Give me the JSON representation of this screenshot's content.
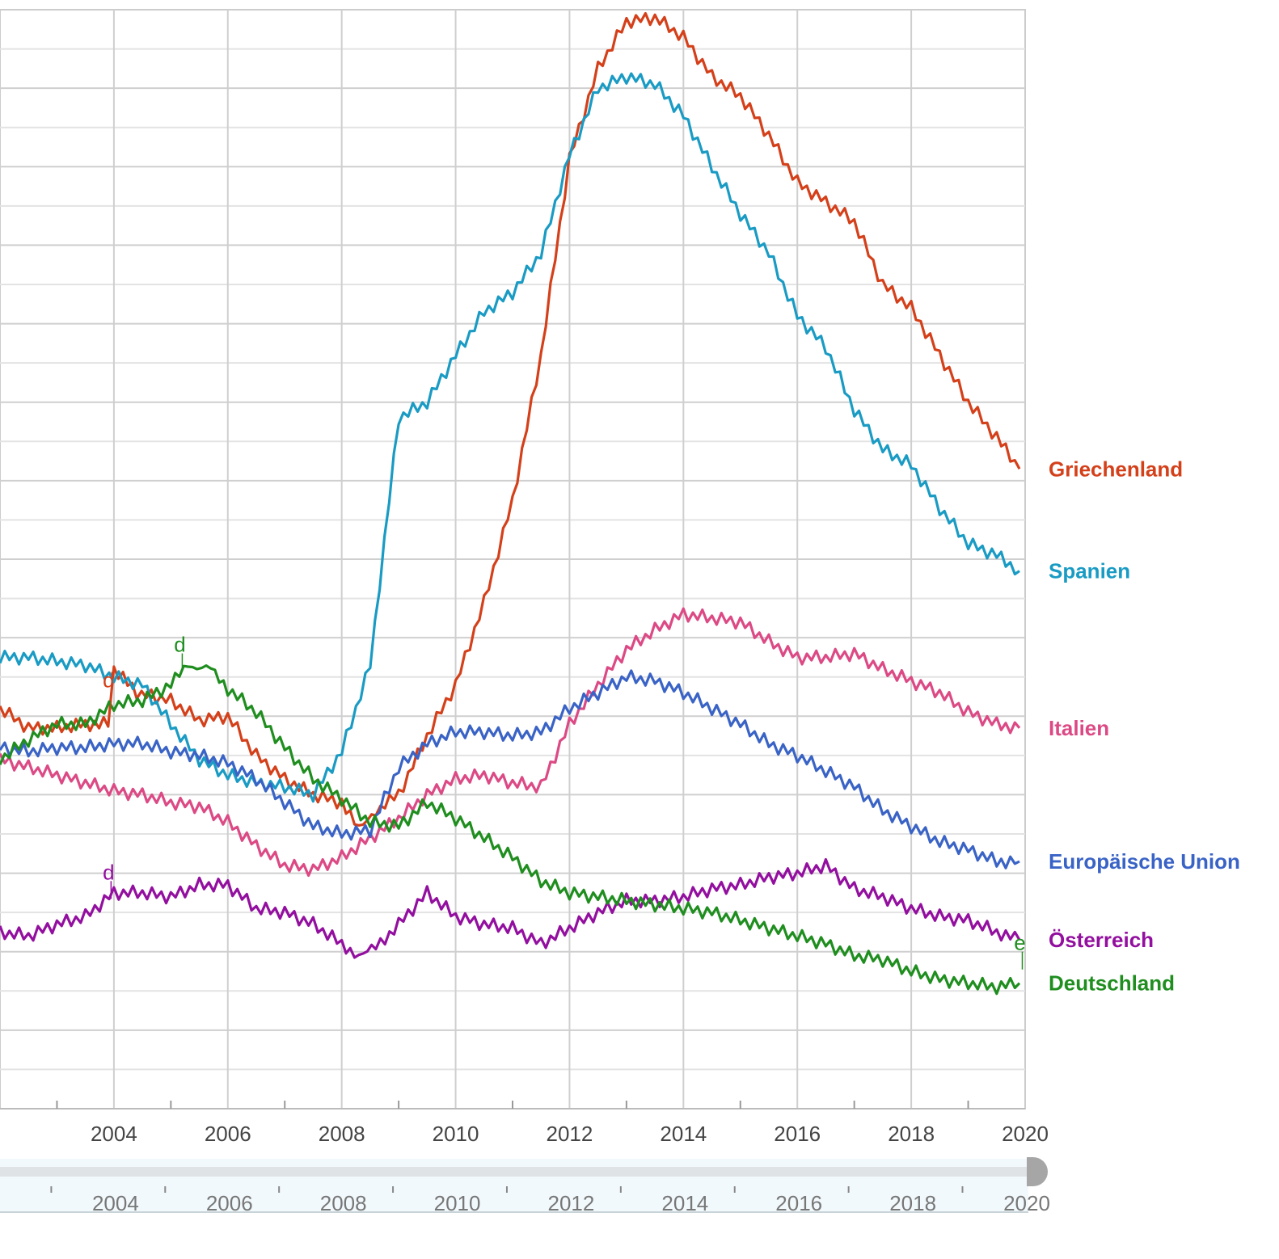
{
  "chart_data": {
    "type": "line",
    "title": "",
    "xlabel": "",
    "ylabel": "",
    "xlim": [
      2002,
      2020
    ],
    "ylim": [
      0,
      28
    ],
    "grid": true,
    "x_ticks": [
      "2004",
      "2006",
      "2008",
      "2010",
      "2012",
      "2014",
      "2016",
      "2018",
      "2020"
    ],
    "navigator_ticks": [
      "2004",
      "2006",
      "2008",
      "2010",
      "2012",
      "2014",
      "2016",
      "2018",
      "2020"
    ],
    "series": [
      {
        "name": "Griechenland",
        "color": "#d4401a",
        "points": [
          [
            2002,
            10.2
          ],
          [
            2002.5,
            9.7
          ],
          [
            2003,
            9.7
          ],
          [
            2003.5,
            9.8
          ],
          [
            2003.9,
            9.8
          ],
          [
            2004,
            11.2
          ],
          [
            2004.4,
            10.6
          ],
          [
            2005,
            10.4
          ],
          [
            2005.5,
            9.9
          ],
          [
            2006,
            10.0
          ],
          [
            2006.5,
            9.0
          ],
          [
            2007,
            8.4
          ],
          [
            2007.5,
            8.0
          ],
          [
            2008,
            7.8
          ],
          [
            2008.3,
            7.1
          ],
          [
            2008.6,
            7.6
          ],
          [
            2009,
            8.0
          ],
          [
            2009.5,
            9.5
          ],
          [
            2010,
            10.8
          ],
          [
            2010.5,
            12.9
          ],
          [
            2011,
            15.5
          ],
          [
            2011.5,
            19.2
          ],
          [
            2012,
            24.2
          ],
          [
            2012.5,
            26.5
          ],
          [
            2013,
            27.7
          ],
          [
            2013.5,
            27.8
          ],
          [
            2014,
            27.3
          ],
          [
            2014.5,
            26.3
          ],
          [
            2015,
            25.8
          ],
          [
            2015.5,
            24.8
          ],
          [
            2016,
            23.6
          ],
          [
            2016.5,
            23.1
          ],
          [
            2017,
            22.6
          ],
          [
            2017.5,
            21.0
          ],
          [
            2018,
            20.4
          ],
          [
            2018.5,
            19.2
          ],
          [
            2019,
            18.0
          ],
          [
            2019.5,
            17.1
          ],
          [
            2019.9,
            16.3
          ]
        ]
      },
      {
        "name": "Spanien",
        "color": "#1a9bc4",
        "points": [
          [
            2002,
            11.5
          ],
          [
            2002.5,
            11.5
          ],
          [
            2003,
            11.4
          ],
          [
            2003.5,
            11.3
          ],
          [
            2004,
            11.0
          ],
          [
            2004.5,
            10.8
          ],
          [
            2005,
            9.8
          ],
          [
            2005.5,
            8.9
          ],
          [
            2006,
            8.5
          ],
          [
            2006.5,
            8.3
          ],
          [
            2007,
            8.2
          ],
          [
            2007.5,
            8.0
          ],
          [
            2008,
            9.1
          ],
          [
            2008.5,
            11.3
          ],
          [
            2009,
            17.6
          ],
          [
            2009.5,
            18.0
          ],
          [
            2010,
            19.2
          ],
          [
            2010.5,
            20.3
          ],
          [
            2011,
            20.8
          ],
          [
            2011.5,
            21.8
          ],
          [
            2012,
            24.3
          ],
          [
            2012.5,
            26.0
          ],
          [
            2013,
            26.3
          ],
          [
            2013.5,
            26.1
          ],
          [
            2014,
            25.3
          ],
          [
            2014.5,
            24.0
          ],
          [
            2015,
            22.8
          ],
          [
            2015.5,
            21.8
          ],
          [
            2016,
            20.2
          ],
          [
            2016.5,
            19.4
          ],
          [
            2017,
            17.8
          ],
          [
            2017.5,
            16.8
          ],
          [
            2018,
            16.4
          ],
          [
            2018.5,
            15.3
          ],
          [
            2019,
            14.4
          ],
          [
            2019.5,
            14.1
          ],
          [
            2019.9,
            13.7
          ]
        ]
      },
      {
        "name": "Italien",
        "color": "#dc4a85",
        "points": [
          [
            2002,
            8.9
          ],
          [
            2002.5,
            8.7
          ],
          [
            2003,
            8.5
          ],
          [
            2003.5,
            8.3
          ],
          [
            2004,
            8.1
          ],
          [
            2004.5,
            8.0
          ],
          [
            2005,
            7.8
          ],
          [
            2005.5,
            7.7
          ],
          [
            2006,
            7.3
          ],
          [
            2006.5,
            6.7
          ],
          [
            2007,
            6.2
          ],
          [
            2007.5,
            6.1
          ],
          [
            2008,
            6.4
          ],
          [
            2008.5,
            6.9
          ],
          [
            2009,
            7.4
          ],
          [
            2009.5,
            8.0
          ],
          [
            2010,
            8.4
          ],
          [
            2010.5,
            8.5
          ],
          [
            2011,
            8.3
          ],
          [
            2011.5,
            8.2
          ],
          [
            2012,
            9.8
          ],
          [
            2012.5,
            10.8
          ],
          [
            2013,
            11.7
          ],
          [
            2013.5,
            12.2
          ],
          [
            2014,
            12.6
          ],
          [
            2014.5,
            12.5
          ],
          [
            2015,
            12.4
          ],
          [
            2015.5,
            11.9
          ],
          [
            2016,
            11.5
          ],
          [
            2016.5,
            11.5
          ],
          [
            2017,
            11.6
          ],
          [
            2017.5,
            11.2
          ],
          [
            2018,
            10.9
          ],
          [
            2018.5,
            10.6
          ],
          [
            2019,
            10.1
          ],
          [
            2019.5,
            9.8
          ],
          [
            2019.9,
            9.7
          ]
        ]
      },
      {
        "name": "Europäische Union",
        "color": "#3a63c6",
        "points": [
          [
            2002,
            9.2
          ],
          [
            2002.5,
            9.1
          ],
          [
            2003,
            9.2
          ],
          [
            2003.5,
            9.2
          ],
          [
            2004,
            9.3
          ],
          [
            2004.5,
            9.3
          ],
          [
            2005,
            9.1
          ],
          [
            2005.5,
            9.0
          ],
          [
            2006,
            8.8
          ],
          [
            2006.5,
            8.4
          ],
          [
            2007,
            7.8
          ],
          [
            2007.5,
            7.2
          ],
          [
            2008,
            7.0
          ],
          [
            2008.5,
            7.1
          ],
          [
            2009,
            8.7
          ],
          [
            2009.5,
            9.3
          ],
          [
            2010,
            9.6
          ],
          [
            2010.5,
            9.6
          ],
          [
            2011,
            9.5
          ],
          [
            2011.5,
            9.6
          ],
          [
            2012,
            10.2
          ],
          [
            2012.5,
            10.6
          ],
          [
            2013,
            11.0
          ],
          [
            2013.5,
            10.9
          ],
          [
            2014,
            10.6
          ],
          [
            2014.5,
            10.2
          ],
          [
            2015,
            9.8
          ],
          [
            2015.5,
            9.3
          ],
          [
            2016,
            9.0
          ],
          [
            2016.5,
            8.6
          ],
          [
            2017,
            8.2
          ],
          [
            2017.5,
            7.6
          ],
          [
            2018,
            7.2
          ],
          [
            2018.5,
            6.8
          ],
          [
            2019,
            6.6
          ],
          [
            2019.5,
            6.3
          ],
          [
            2019.9,
            6.3
          ]
        ]
      },
      {
        "name": "Österreich",
        "color": "#930f9f",
        "points": [
          [
            2002,
            4.5
          ],
          [
            2002.5,
            4.4
          ],
          [
            2003,
            4.7
          ],
          [
            2003.5,
            4.9
          ],
          [
            2004,
            5.5
          ],
          [
            2004.5,
            5.5
          ],
          [
            2005,
            5.4
          ],
          [
            2005.5,
            5.7
          ],
          [
            2006,
            5.7
          ],
          [
            2006.5,
            5.1
          ],
          [
            2007,
            5.0
          ],
          [
            2007.5,
            4.7
          ],
          [
            2008,
            4.2
          ],
          [
            2008.3,
            3.9
          ],
          [
            2008.6,
            4.1
          ],
          [
            2009,
            4.7
          ],
          [
            2009.5,
            5.5
          ],
          [
            2010,
            4.9
          ],
          [
            2010.5,
            4.7
          ],
          [
            2011,
            4.6
          ],
          [
            2011.5,
            4.2
          ],
          [
            2012,
            4.6
          ],
          [
            2012.5,
            5.0
          ],
          [
            2013,
            5.3
          ],
          [
            2013.5,
            5.3
          ],
          [
            2014,
            5.4
          ],
          [
            2014.5,
            5.6
          ],
          [
            2015,
            5.7
          ],
          [
            2015.5,
            5.9
          ],
          [
            2016,
            6.0
          ],
          [
            2016.5,
            6.2
          ],
          [
            2017,
            5.6
          ],
          [
            2017.5,
            5.4
          ],
          [
            2018,
            5.1
          ],
          [
            2018.5,
            4.9
          ],
          [
            2019,
            4.8
          ],
          [
            2019.5,
            4.5
          ],
          [
            2019.9,
            4.3
          ]
        ]
      },
      {
        "name": "Deutschland",
        "color": "#1f8e1f",
        "points": [
          [
            2002,
            8.9
          ],
          [
            2002.5,
            9.4
          ],
          [
            2003,
            9.8
          ],
          [
            2003.5,
            9.8
          ],
          [
            2004,
            10.3
          ],
          [
            2004.5,
            10.4
          ],
          [
            2005,
            10.8
          ],
          [
            2005.3,
            11.3
          ],
          [
            2005.7,
            11.2
          ],
          [
            2006,
            10.7
          ],
          [
            2006.5,
            10.1
          ],
          [
            2007,
            9.2
          ],
          [
            2007.5,
            8.4
          ],
          [
            2008,
            7.9
          ],
          [
            2008.5,
            7.3
          ],
          [
            2009,
            7.2
          ],
          [
            2009.5,
            7.8
          ],
          [
            2010,
            7.4
          ],
          [
            2010.5,
            6.9
          ],
          [
            2011,
            6.4
          ],
          [
            2011.5,
            5.8
          ],
          [
            2012,
            5.5
          ],
          [
            2012.5,
            5.4
          ],
          [
            2013,
            5.3
          ],
          [
            2013.5,
            5.2
          ],
          [
            2014,
            5.1
          ],
          [
            2014.5,
            5.0
          ],
          [
            2015,
            4.8
          ],
          [
            2015.5,
            4.6
          ],
          [
            2016,
            4.4
          ],
          [
            2016.5,
            4.2
          ],
          [
            2017,
            3.9
          ],
          [
            2017.5,
            3.8
          ],
          [
            2018,
            3.5
          ],
          [
            2018.5,
            3.3
          ],
          [
            2019,
            3.2
          ],
          [
            2019.5,
            3.1
          ],
          [
            2019.9,
            3.2
          ]
        ]
      }
    ],
    "annotations": [
      {
        "letter": "d",
        "series": "Griechenland",
        "x": 2003.95,
        "y": 10.7,
        "color": "#d4401a"
      },
      {
        "letter": "d",
        "series": "Deutschland",
        "x": 2005.2,
        "y": 11.6,
        "color": "#1f8e1f"
      },
      {
        "letter": "d",
        "series": "Österreich",
        "x": 2003.95,
        "y": 5.8,
        "color": "#930f9f"
      },
      {
        "letter": "e",
        "series": "Deutschland",
        "x": 2019.95,
        "y": 4.0,
        "color": "#1f8e1f"
      }
    ]
  }
}
